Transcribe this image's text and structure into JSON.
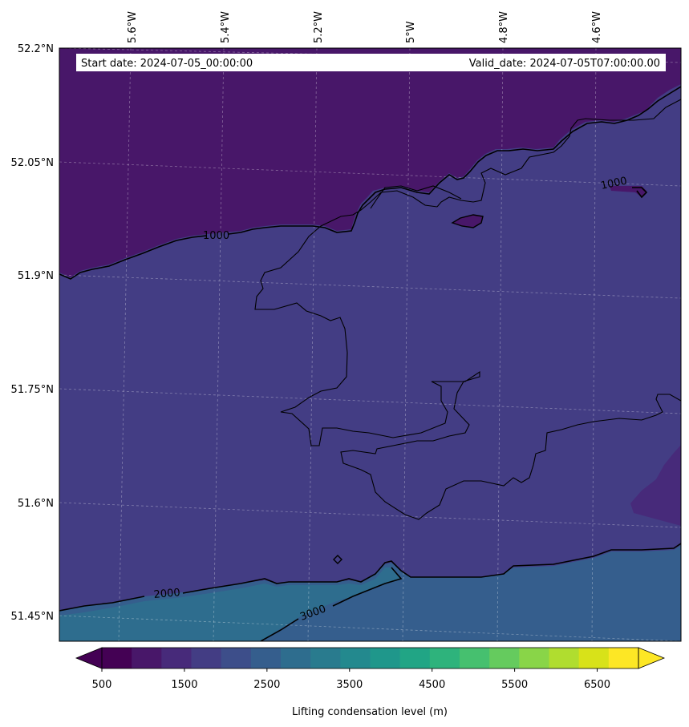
{
  "map": {
    "start_date": "Start date: 2024-07-05_00:00:00",
    "valid_date": "Valid_date: 2024-07-05T07:00:00.00",
    "lon_labels": [
      "5.6°W",
      "5.4°W",
      "5.2°W",
      "5°W",
      "4.8°W",
      "4.6°W"
    ],
    "lat_labels": [
      "52.2°N",
      "52.05°N",
      "51.9°N",
      "51.75°N",
      "51.6°N",
      "51.45°N"
    ],
    "contour_labels": [
      "1000",
      "1000",
      "2000",
      "3000"
    ],
    "gridlines": true
  },
  "colorbar": {
    "label": "Lifting condensation level (m)",
    "ticks": [
      "500",
      "1500",
      "2500",
      "3500",
      "4500",
      "5500",
      "6500"
    ],
    "levels": [
      500,
      1000,
      1500,
      2000,
      2500,
      3000,
      3500,
      4000,
      4500,
      5000,
      5500,
      6000,
      6500,
      7000
    ],
    "extend": "both",
    "colors": [
      "#440154",
      "#481769",
      "#472a7a",
      "#433d84",
      "#3d4e8a",
      "#355e8d",
      "#2e6d8e",
      "#297b8e",
      "#23898e",
      "#1f978b",
      "#21a585",
      "#2eb37c",
      "#46c06f",
      "#65cb5e",
      "#89d548",
      "#b0dd2f",
      "#d8e219",
      "#fde725"
    ],
    "under_color": "#440154",
    "over_color": "#fde725"
  },
  "fields": {
    "band_500_1000": "#481769",
    "band_1500_2000": "#433d84",
    "band_2000_2500": "#355e8d",
    "band_2500_3000": "#2e6d8e",
    "band_3000_3500": "#297b8e",
    "band_east_patch": "#472a7a"
  }
}
